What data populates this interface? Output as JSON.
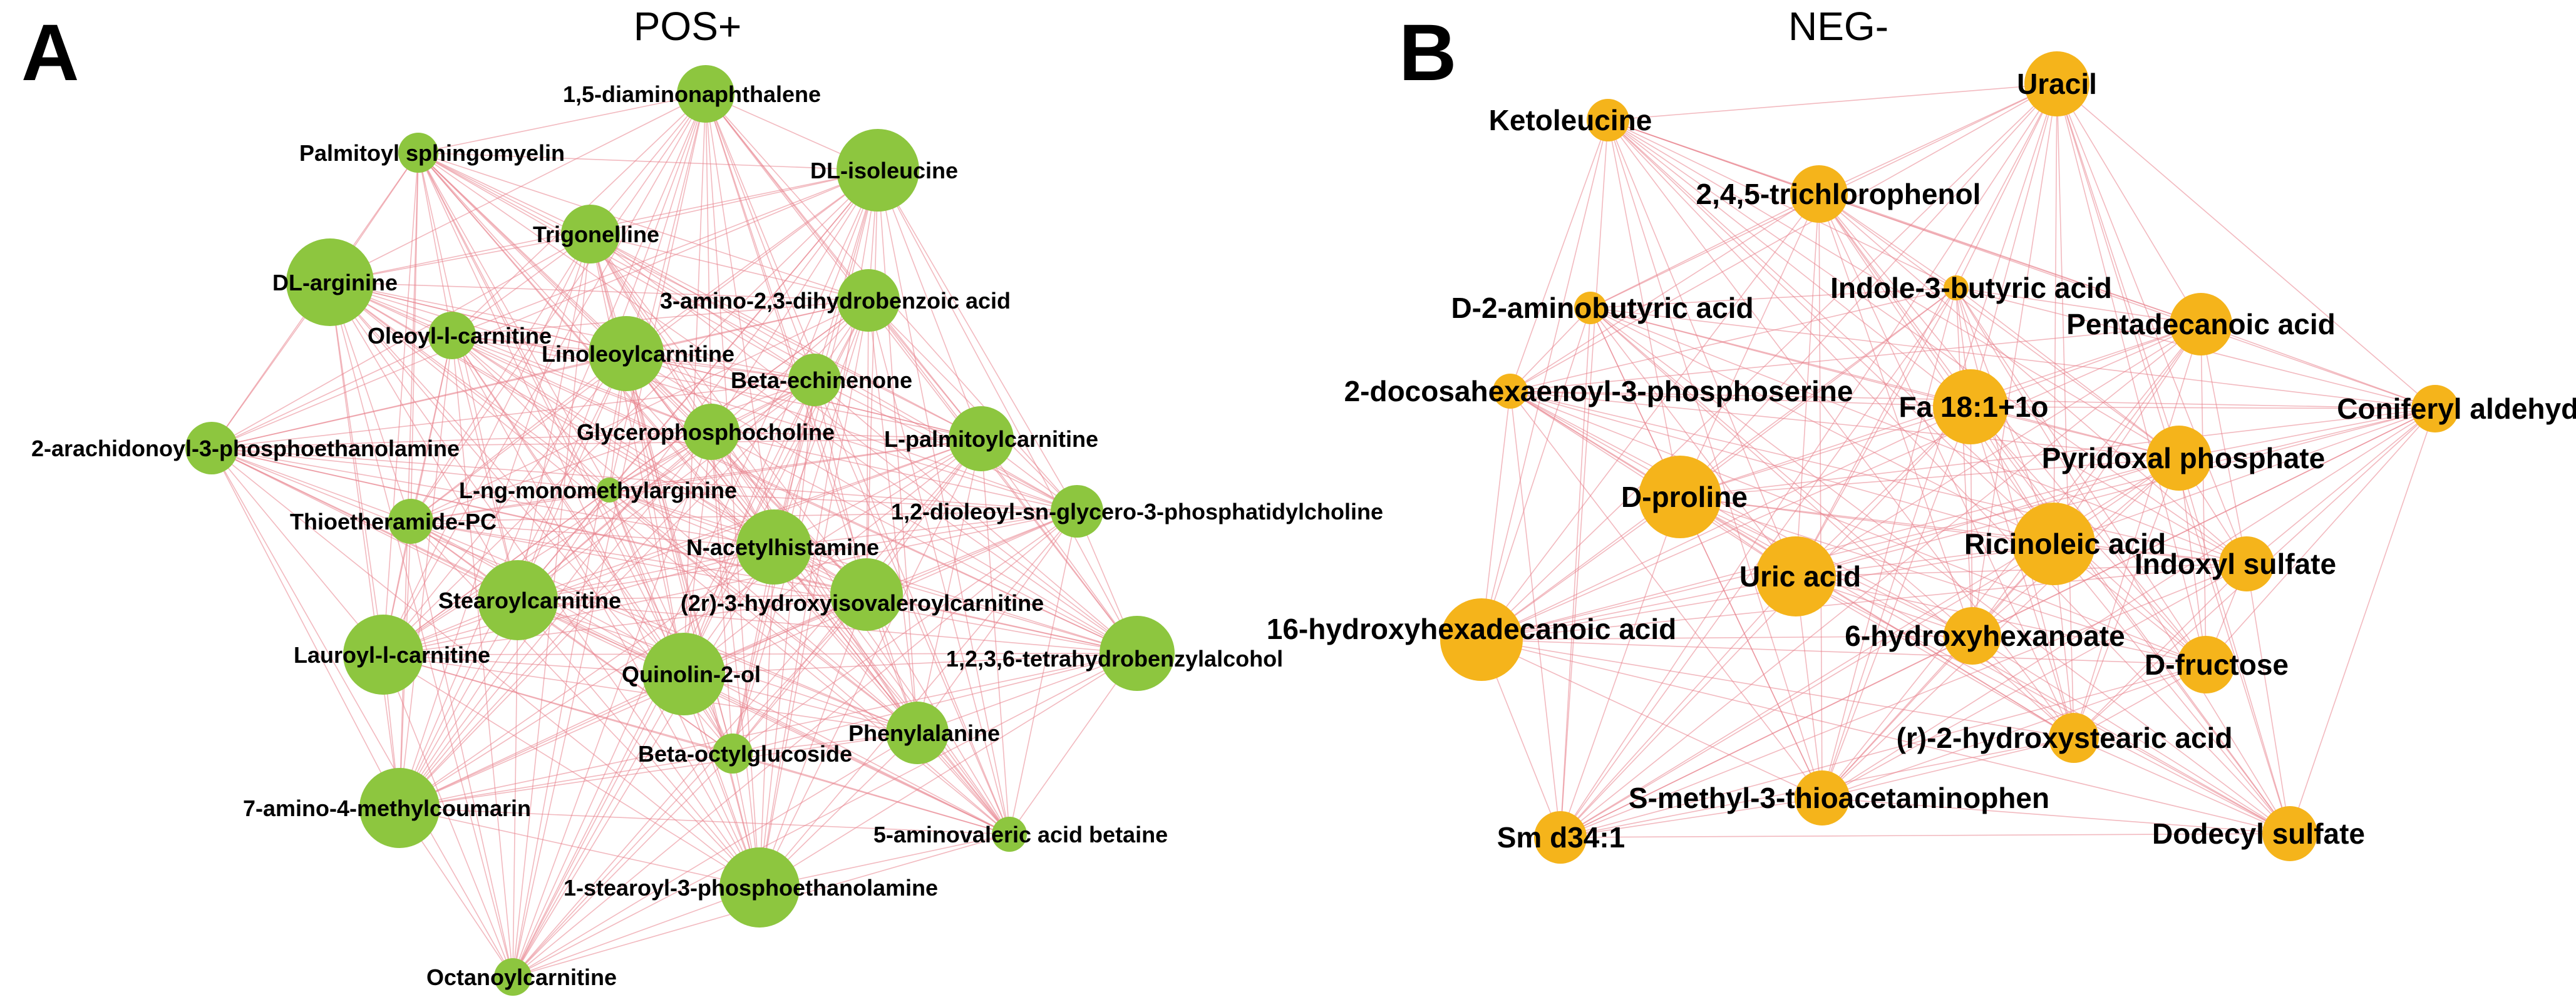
{
  "panels": {
    "pos": {
      "letter": "A",
      "title": "POS+",
      "node_color": "#8dc63f"
    },
    "neg": {
      "letter": "B",
      "title": "NEG-",
      "node_color": "#f5b41b"
    }
  },
  "edge_color": "#e8808a",
  "pos_nodes": [
    {
      "id": "diaminonaphthalene",
      "label": "1,5-diaminonaphthalene"
    },
    {
      "id": "palmitoyl-sphingomyelin",
      "label": "Palmitoyl sphingomyelin"
    },
    {
      "id": "dl-isoleucine",
      "label": "DL-isoleucine"
    },
    {
      "id": "trigonelline",
      "label": "Trigonelline"
    },
    {
      "id": "dl-arginine",
      "label": "DL-arginine"
    },
    {
      "id": "amino-dihydrobenzoic-acid",
      "label": "3-amino-2,3-dihydrobenzoic acid"
    },
    {
      "id": "oleoyl-l-carnitine",
      "label": "Oleoyl-l-carnitine"
    },
    {
      "id": "linoleoylcarnitine",
      "label": "Linoleoylcarnitine"
    },
    {
      "id": "beta-echinenone",
      "label": "Beta-echinenone"
    },
    {
      "id": "glycerophosphocholine",
      "label": "Glycerophosphocholine"
    },
    {
      "id": "l-palmitoylcarnitine",
      "label": "L-palmitoylcarnitine"
    },
    {
      "id": "arachidonoyl-phosphoethanolamine",
      "label": "2-arachidonoyl-3-phosphoethanolamine"
    },
    {
      "id": "l-ng-monomethylarginine",
      "label": "L-ng-monomethylarginine"
    },
    {
      "id": "dioleoyl-phosphatidylcholine",
      "label": "1,2-dioleoyl-sn-glycero-3-phosphatidylcholine"
    },
    {
      "id": "thioetheramide-pc",
      "label": "Thioetheramide-PC"
    },
    {
      "id": "n-acetylhistamine",
      "label": "N-acetylhistamine"
    },
    {
      "id": "stearoylcarnitine",
      "label": "Stearoylcarnitine"
    },
    {
      "id": "hydroxyisovaleroylcarnitine",
      "label": "(2r)-3-hydroxyisovaleroylcarnitine"
    },
    {
      "id": "lauroyl-l-carnitine",
      "label": "Lauroyl-l-carnitine"
    },
    {
      "id": "tetrahydrobenzylalcohol",
      "label": "1,2,3,6-tetrahydrobenzylalcohol"
    },
    {
      "id": "quinolin-2-ol",
      "label": "Quinolin-2-ol"
    },
    {
      "id": "phenylalanine",
      "label": "Phenylalanine"
    },
    {
      "id": "beta-octylglucoside",
      "label": "Beta-octylglucoside"
    },
    {
      "id": "amino-methylcoumarin",
      "label": "7-amino-4-methylcoumarin"
    },
    {
      "id": "aminovaleric-acid-betaine",
      "label": "5-aminovaleric acid betaine"
    },
    {
      "id": "stearoyl-phosphoethanolamine",
      "label": "1-stearoyl-3-phosphoethanolamine"
    },
    {
      "id": "octanoylcarnitine",
      "label": "Octanoylcarnitine"
    }
  ],
  "neg_nodes": [
    {
      "id": "uracil",
      "label": "Uracil"
    },
    {
      "id": "ketoleucine",
      "label": "Ketoleucine"
    },
    {
      "id": "trichlorophenol",
      "label": "2,4,5-trichlorophenol"
    },
    {
      "id": "indole-butyric-acid",
      "label": "Indole-3-butyric acid"
    },
    {
      "id": "d-aminobutyric-acid",
      "label": "D-2-aminobutyric acid"
    },
    {
      "id": "pentadecanoic-acid",
      "label": "Pentadecanoic acid"
    },
    {
      "id": "docosahexaenoyl-phosphoserine",
      "label": "2-docosahexaenoyl-3-phosphoserine"
    },
    {
      "id": "fa-18-1",
      "label": "Fa 18:1+1o"
    },
    {
      "id": "coniferyl-aldehyde",
      "label": "Coniferyl aldehyde"
    },
    {
      "id": "pyridoxal-phosphate",
      "label": "Pyridoxal phosphate"
    },
    {
      "id": "d-proline",
      "label": "D-proline"
    },
    {
      "id": "ricinoleic-acid",
      "label": "Ricinoleic acid"
    },
    {
      "id": "indoxyl-sulfate",
      "label": "Indoxyl sulfate"
    },
    {
      "id": "uric-acid",
      "label": "Uric acid"
    },
    {
      "id": "hydroxyhexadecanoic-acid",
      "label": "16-hydroxyhexadecanoic acid"
    },
    {
      "id": "hydroxyhexanoate",
      "label": "6-hydroxyhexanoate"
    },
    {
      "id": "d-fructose",
      "label": "D-fructose"
    },
    {
      "id": "hydroxystearic-acid",
      "label": "(r)-2-hydroxystearic acid"
    },
    {
      "id": "s-methyl-thioacetaminophen",
      "label": "S-methyl-3-thioacetaminophen"
    },
    {
      "id": "sm-d34-1",
      "label": "Sm d34:1"
    },
    {
      "id": "dodecyl-sulfate",
      "label": "Dodecyl sulfate"
    }
  ]
}
